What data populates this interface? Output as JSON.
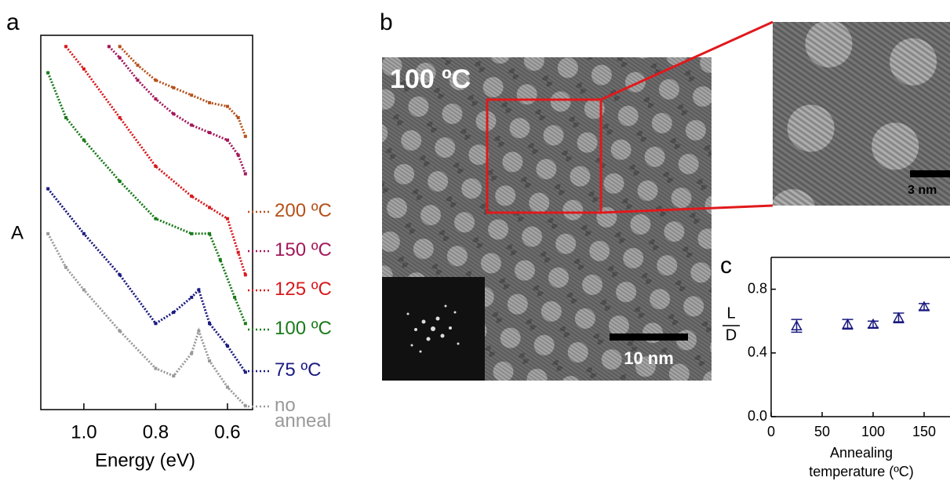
{
  "panel_labels": [
    "a",
    "b",
    "c"
  ],
  "images": {
    "main_label": "100 ºC",
    "main_scale": "10 nm",
    "zoom_scale": "3 nm"
  },
  "chart_data": [
    {
      "type": "line",
      "x_label": "Energy (eV)",
      "y_label": "A",
      "xlim": [
        1.12,
        0.53
      ],
      "xticks": [
        {
          "value": 1.0,
          "label": "1.0"
        },
        0.8,
        0.6
      ],
      "ylim": [
        0,
        100
      ],
      "series": [
        {
          "name": "200 ºC",
          "color": "#b5501a",
          "x": [
            0.9,
            0.85,
            0.8,
            0.75,
            0.7,
            0.65,
            0.6,
            0.57,
            0.55
          ],
          "values": [
            97,
            92,
            88,
            86,
            84,
            82,
            81,
            78,
            73
          ]
        },
        {
          "name": "150 ºC",
          "color": "#a3185a",
          "x": [
            0.93,
            0.9,
            0.85,
            0.8,
            0.75,
            0.7,
            0.65,
            0.6,
            0.57,
            0.55
          ],
          "values": [
            97,
            94,
            88,
            83,
            79,
            76,
            74,
            72,
            68,
            63
          ]
        },
        {
          "name": "125 ºC",
          "color": "#d7191c",
          "x": [
            1.05,
            1.0,
            0.9,
            0.8,
            0.7,
            0.65,
            0.6,
            0.57,
            0.55
          ],
          "values": [
            97,
            91,
            78,
            65,
            57,
            54,
            51,
            42,
            36
          ]
        },
        {
          "name": "100 ºC",
          "color": "#1a7a1a",
          "x": [
            1.1,
            1.05,
            1.0,
            0.9,
            0.8,
            0.7,
            0.65,
            0.62,
            0.58,
            0.55
          ],
          "values": [
            90,
            78,
            72,
            61,
            51,
            47,
            47,
            40,
            30,
            23
          ]
        },
        {
          "name": "75 ºC",
          "color": "#1a1a80",
          "x": [
            1.1,
            1.0,
            0.9,
            0.8,
            0.75,
            0.7,
            0.68,
            0.65,
            0.6,
            0.55
          ],
          "values": [
            59,
            47,
            36,
            23,
            26,
            30,
            32,
            23,
            17,
            10
          ]
        },
        {
          "name": "no anneal",
          "color": "#999999",
          "x": [
            1.1,
            1.05,
            1.0,
            0.9,
            0.8,
            0.75,
            0.7,
            0.68,
            0.65,
            0.6,
            0.55
          ],
          "values": [
            47,
            38,
            32,
            21,
            11,
            9,
            15,
            21,
            13,
            6,
            1
          ]
        }
      ]
    },
    {
      "type": "scatter",
      "x_label": [
        "Annealing",
        "temperature (ºC)"
      ],
      "y_label": [
        "L",
        "D"
      ],
      "x": [
        25,
        75,
        100,
        125,
        150
      ],
      "values": [
        0.57,
        0.58,
        0.58,
        0.62,
        0.69
      ],
      "errors": [
        0.04,
        0.03,
        0.02,
        0.03,
        0.02
      ],
      "color": "#1a1a80",
      "xlim": [
        0,
        175
      ],
      "ylim": [
        0,
        1.0
      ],
      "xticks": [
        0,
        50,
        100,
        150
      ],
      "yticks": [
        {
          "value": 0,
          "label": "0.0"
        },
        {
          "value": 0.4,
          "label": "0.4"
        },
        {
          "value": 0.8,
          "label": "0.8"
        }
      ]
    }
  ]
}
